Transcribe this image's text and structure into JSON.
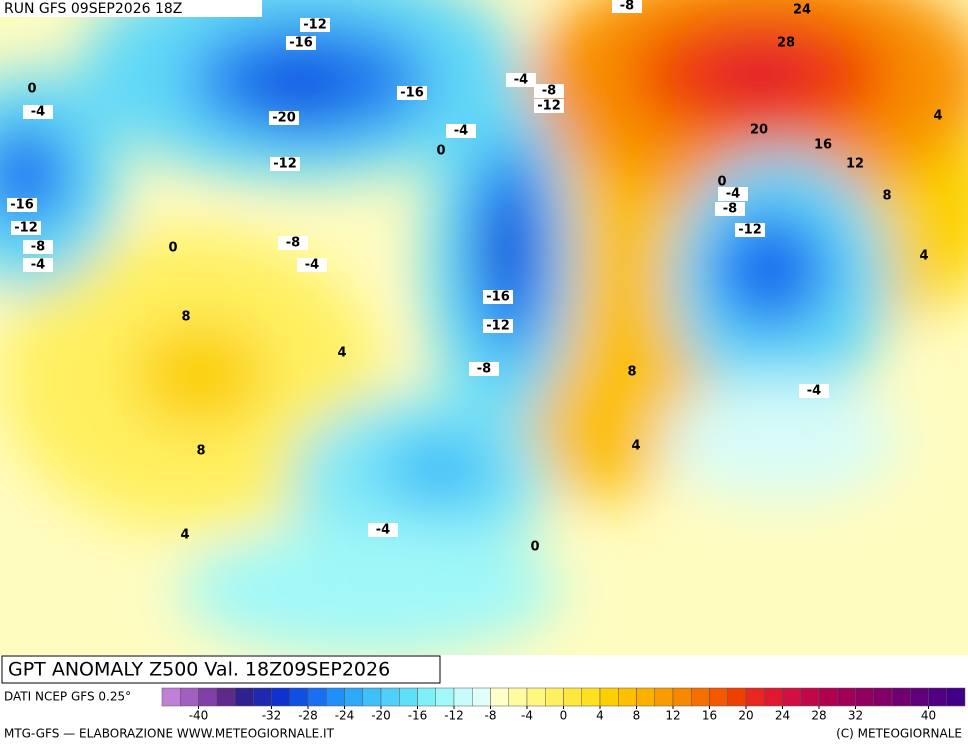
{
  "header": {
    "run": "RUN GFS 09SEP2026 18Z"
  },
  "contour_labels": [
    -12,
    -16,
    -8,
    24,
    28,
    0,
    -4,
    -20,
    -16,
    -4,
    -8,
    -12,
    -4,
    0,
    20,
    16,
    4,
    12,
    -12,
    -16,
    -12,
    -8,
    -4,
    0,
    -8,
    -4,
    0,
    -4,
    -8,
    -12,
    8,
    4,
    -16,
    -12,
    8,
    4,
    -8,
    8,
    -4,
    8,
    4,
    -4,
    4,
    0
  ],
  "footer": {
    "title": "GPT ANOMALY Z500 Val. 18Z09SEP2026",
    "source": "DATI NCEP GFS 0.25°",
    "credit": "MTG-GFS — ELABORAZIONE WWW.METEOGIORNALE.IT",
    "copyright": "(C) METEOGIORNALE"
  },
  "colorbar": {
    "range": [
      -44,
      44
    ],
    "step": 4,
    "ticks": [
      -40,
      -32,
      -28,
      -24,
      -20,
      -16,
      -12,
      -8,
      -4,
      0,
      4,
      8,
      12,
      16,
      20,
      24,
      28,
      32,
      40
    ],
    "colors": [
      "#c080d8",
      "#a060c0",
      "#8040a8",
      "#602888",
      "#302090",
      "#2028b0",
      "#1030d0",
      "#1050e0",
      "#1870f0",
      "#2090f8",
      "#30a8f8",
      "#40c0f8",
      "#50d0f8",
      "#60e0f8",
      "#80f0f8",
      "#a0f8f8",
      "#c8fcfc",
      "#e0fff8",
      "#ffffc8",
      "#fffca0",
      "#fff880",
      "#fff060",
      "#fee840",
      "#fde020",
      "#fcd000",
      "#fcc000",
      "#fbb000",
      "#fa9c00",
      "#f88800",
      "#f67000",
      "#f45800",
      "#f04000",
      "#e82820",
      "#e01830",
      "#d01040",
      "#c00848",
      "#b00050",
      "#a00058",
      "#900060",
      "#800068",
      "#700070",
      "#600078",
      "#500080",
      "#400088"
    ]
  }
}
